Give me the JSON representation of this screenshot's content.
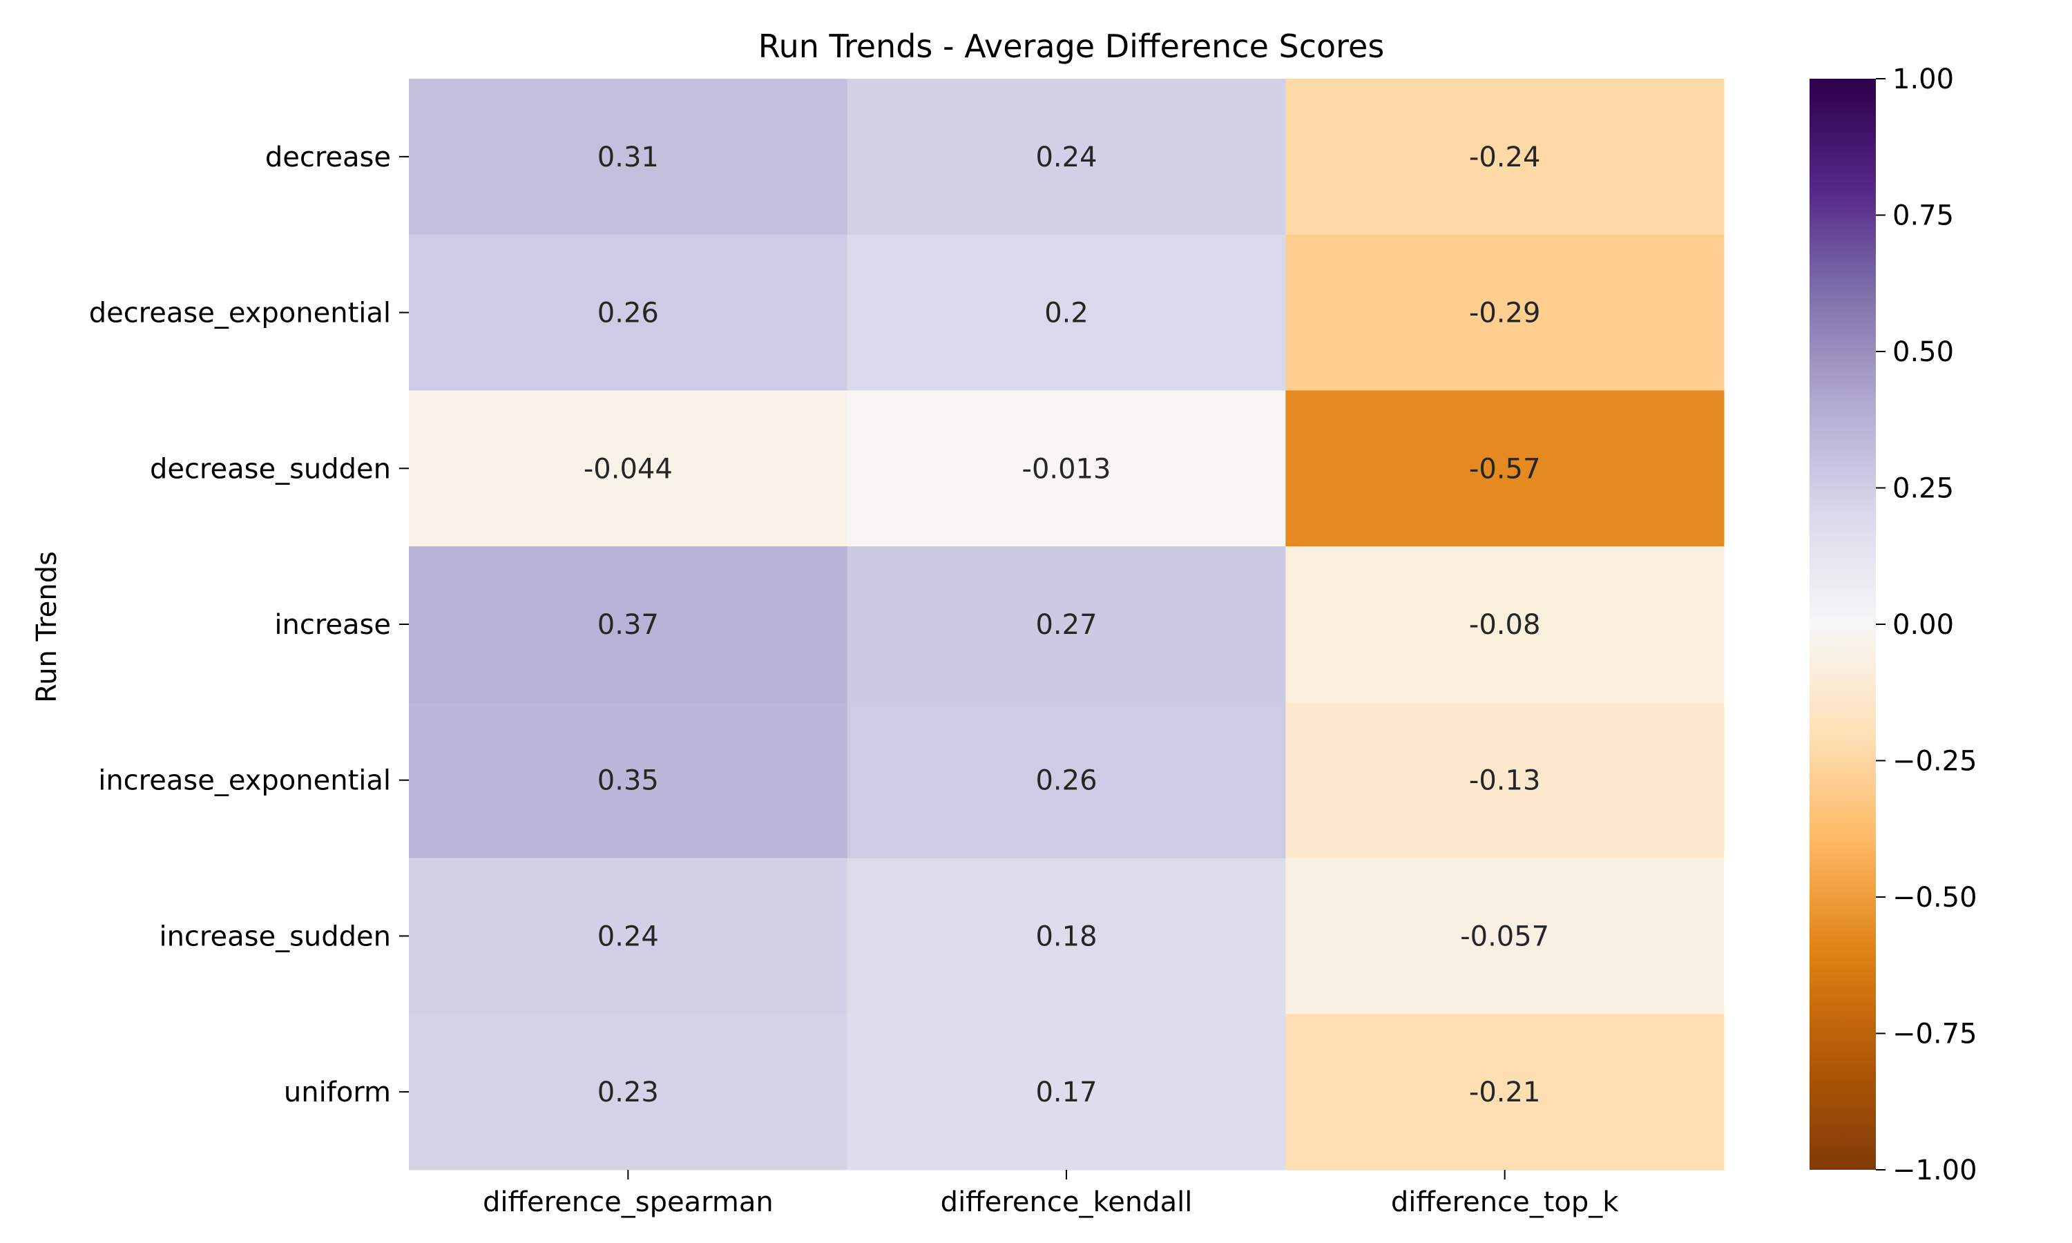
{
  "chart_data": {
    "type": "heatmap",
    "title": "Run Trends - Average Difference Scores",
    "ylabel": "Run Trends",
    "xlabel": "",
    "rows": [
      "decrease",
      "decrease_exponential",
      "decrease_sudden",
      "increase",
      "increase_exponential",
      "increase_sudden",
      "uniform"
    ],
    "columns": [
      "difference_spearman",
      "difference_kendall",
      "difference_top_k"
    ],
    "values": [
      [
        0.31,
        0.24,
        -0.24
      ],
      [
        0.26,
        0.2,
        -0.29
      ],
      [
        -0.044,
        -0.013,
        -0.57
      ],
      [
        0.37,
        0.27,
        -0.08
      ],
      [
        0.35,
        0.26,
        -0.13
      ],
      [
        0.24,
        0.18,
        -0.057
      ],
      [
        0.23,
        0.17,
        -0.21
      ]
    ],
    "cell_labels": [
      [
        "0.31",
        "0.24",
        "-0.24"
      ],
      [
        "0.26",
        "0.2",
        "-0.29"
      ],
      [
        "-0.044",
        "-0.013",
        "-0.57"
      ],
      [
        "0.37",
        "0.27",
        "-0.08"
      ],
      [
        "0.35",
        "0.26",
        "-0.13"
      ],
      [
        "0.24",
        "0.18",
        "-0.057"
      ],
      [
        "0.23",
        "0.17",
        "-0.21"
      ]
    ],
    "colormap": "PuOr",
    "vmin": -1,
    "vmax": 1,
    "colorbar_ticks": [
      1.0,
      0.75,
      0.5,
      0.25,
      0.0,
      -0.25,
      -0.5,
      -0.75,
      -1.0
    ],
    "colorbar_tick_labels": [
      "1.00",
      "0.75",
      "0.50",
      "0.25",
      "0.00",
      "−0.25",
      "−0.50",
      "−0.75",
      "−1.00"
    ]
  }
}
